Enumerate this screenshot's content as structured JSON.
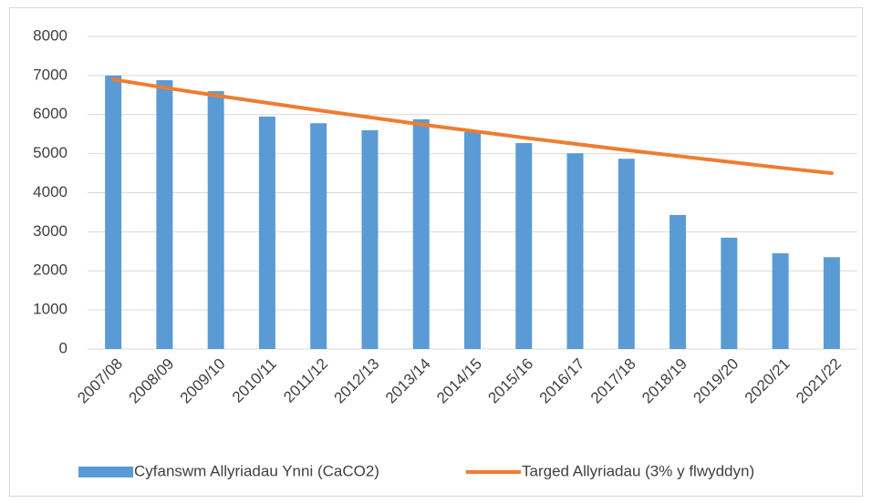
{
  "chart_data": {
    "type": "bar",
    "categories": [
      "2007/08",
      "2008/09",
      "2009/10",
      "2010/11",
      "2011/12",
      "2012/13",
      "2013/14",
      "2014/15",
      "2015/16",
      "2016/17",
      "2017/18",
      "2018/19",
      "2019/20",
      "2020/21",
      "2021/22"
    ],
    "series": [
      {
        "name": "Cyfanswm Allyriadau Ynni (CaCO2)",
        "type": "bar",
        "color": "#5b9bd5",
        "values": [
          7000,
          6880,
          6600,
          5950,
          5780,
          5600,
          5880,
          5550,
          5270,
          5010,
          4870,
          3430,
          2850,
          2450,
          2350
        ]
      },
      {
        "name": "Targed Allyriadau (3% y flwyddyn)",
        "type": "line",
        "color": "#ed7d31",
        "values": [
          6900,
          6690,
          6490,
          6300,
          6110,
          5930,
          5750,
          5580,
          5410,
          5250,
          5090,
          4940,
          4790,
          4640,
          4500
        ]
      }
    ],
    "ylim": [
      0,
      8000
    ],
    "yticks": [
      0,
      1000,
      2000,
      3000,
      4000,
      5000,
      6000,
      7000,
      8000
    ],
    "grid": true,
    "legend": "bottom"
  }
}
